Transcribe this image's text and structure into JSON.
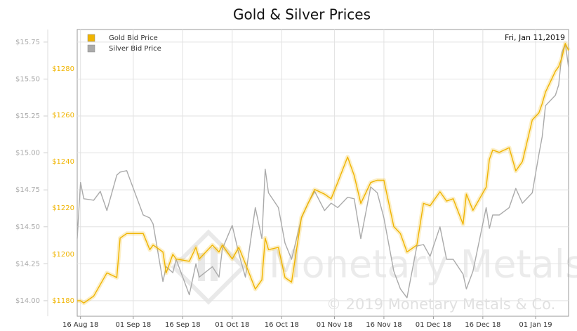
{
  "chart_data": {
    "type": "line",
    "title": "Gold & Silver Prices",
    "annotation": "Fri, Jan 11,2019",
    "watermark": "Monetary Metals",
    "copyright": "© 2019 Monetary Metals & Co.",
    "x": [
      "2018-08-15",
      "2018-08-16",
      "2018-08-17",
      "2018-08-20",
      "2018-08-22",
      "2018-08-24",
      "2018-08-27",
      "2018-08-28",
      "2018-08-30",
      "2018-09-04",
      "2018-09-06",
      "2018-09-07",
      "2018-09-10",
      "2018-09-11",
      "2018-09-13",
      "2018-09-14",
      "2018-09-18",
      "2018-09-20",
      "2018-09-21",
      "2018-09-25",
      "2018-09-27",
      "2018-09-28",
      "2018-10-01",
      "2018-10-03",
      "2018-10-05",
      "2018-10-08",
      "2018-10-10",
      "2018-10-11",
      "2018-10-12",
      "2018-10-15",
      "2018-10-17",
      "2018-10-19",
      "2018-10-22",
      "2018-10-24",
      "2018-10-26",
      "2018-10-29",
      "2018-10-31",
      "2018-11-02",
      "2018-11-05",
      "2018-11-07",
      "2018-11-09",
      "2018-11-12",
      "2018-11-14",
      "2018-11-16",
      "2018-11-19",
      "2018-11-21",
      "2018-11-23",
      "2018-11-26",
      "2018-11-28",
      "2018-11-30",
      "2018-12-03",
      "2018-12-05",
      "2018-12-07",
      "2018-12-10",
      "2018-12-11",
      "2018-12-13",
      "2018-12-17",
      "2018-12-18",
      "2018-12-19",
      "2018-12-21",
      "2018-12-24",
      "2018-12-26",
      "2018-12-28",
      "2018-12-31",
      "2019-01-02",
      "2019-01-03",
      "2019-01-04",
      "2019-01-07",
      "2019-01-08",
      "2019-01-09",
      "2019-01-10",
      "2019-01-11"
    ],
    "series": [
      {
        "name": "Gold Bid Price",
        "color": "#f0b400",
        "axis": "y2",
        "values": [
          1180,
          1180,
          1179,
          1182,
          1187,
          1192,
          1190,
          1207,
          1209,
          1209,
          1202,
          1204,
          1201,
          1192,
          1200,
          1198,
          1197,
          1203,
          1198,
          1204,
          1201,
          1204,
          1198,
          1203,
          1196,
          1185,
          1189,
          1207,
          1202,
          1203,
          1190,
          1188,
          1216,
          1222,
          1228,
          1226,
          1224,
          1231,
          1242,
          1234,
          1222,
          1231,
          1232,
          1232,
          1212,
          1209,
          1201,
          1204,
          1222,
          1221,
          1227,
          1223,
          1224,
          1213,
          1226,
          1219,
          1229,
          1241,
          1245,
          1244,
          1246,
          1236,
          1240,
          1258,
          1261,
          1265,
          1270,
          1279,
          1281,
          1285,
          1291,
          1288
        ]
      },
      {
        "name": "Silver Bid Price",
        "color": "#aaaaaa",
        "values": [
          14.42,
          14.8,
          14.69,
          14.68,
          14.74,
          14.61,
          14.85,
          14.87,
          14.88,
          14.58,
          14.56,
          14.52,
          14.13,
          14.23,
          14.19,
          14.28,
          14.04,
          14.25,
          14.16,
          14.23,
          14.16,
          14.35,
          14.51,
          14.32,
          14.16,
          14.63,
          14.42,
          14.89,
          14.73,
          14.63,
          14.39,
          14.28,
          14.56,
          14.66,
          14.74,
          14.61,
          14.66,
          14.63,
          14.7,
          14.69,
          14.42,
          14.77,
          14.73,
          14.56,
          14.2,
          14.08,
          14.02,
          14.37,
          14.38,
          14.3,
          14.5,
          14.28,
          14.28,
          14.18,
          14.08,
          14.2,
          14.63,
          14.49,
          14.58,
          14.58,
          14.63,
          14.76,
          14.66,
          14.73,
          14.99,
          15.11,
          15.32,
          15.39,
          15.46,
          15.68,
          15.74,
          15.58
        ]
      }
    ],
    "xlim": [
      "2018-08-15",
      "2019-01-11"
    ],
    "xticks": [
      {
        "value": "2018-08-16",
        "label": "16 Aug 18"
      },
      {
        "value": "2018-09-01",
        "label": "01 Sep 18"
      },
      {
        "value": "2018-09-16",
        "label": "16 Sep 18"
      },
      {
        "value": "2018-10-01",
        "label": "01 Oct 18"
      },
      {
        "value": "2018-10-16",
        "label": "16 Oct 18"
      },
      {
        "value": "2018-11-01",
        "label": "01 Nov 18"
      },
      {
        "value": "2018-11-16",
        "label": "16 Nov 18"
      },
      {
        "value": "2018-12-01",
        "label": "01 Dec 18"
      },
      {
        "value": "2018-12-16",
        "label": "16 Dec 18"
      },
      {
        "value": "2019-01-01",
        "label": "01 Jan 19"
      }
    ],
    "ylim": [
      13.895,
      15.835
    ],
    "yticks": [
      {
        "value": 14.0,
        "label": "$14.00"
      },
      {
        "value": 14.25,
        "label": "$14.25"
      },
      {
        "value": 14.5,
        "label": "$14.50"
      },
      {
        "value": 14.75,
        "label": "$14.75"
      },
      {
        "value": 15.0,
        "label": "$15.00"
      },
      {
        "value": 15.25,
        "label": "$15.25"
      },
      {
        "value": 15.5,
        "label": "$15.50"
      },
      {
        "value": 15.75,
        "label": "$15.75"
      }
    ],
    "y2lim": [
      1173.3,
      1297
    ],
    "y2ticks": [
      {
        "value": 1180,
        "label": "$1180"
      },
      {
        "value": 1200,
        "label": "$1200"
      },
      {
        "value": 1220,
        "label": "$1220"
      },
      {
        "value": 1240,
        "label": "$1240"
      },
      {
        "value": 1260,
        "label": "$1260"
      },
      {
        "value": 1280,
        "label": "$1280"
      }
    ],
    "grid": true,
    "legend": "top-left"
  }
}
